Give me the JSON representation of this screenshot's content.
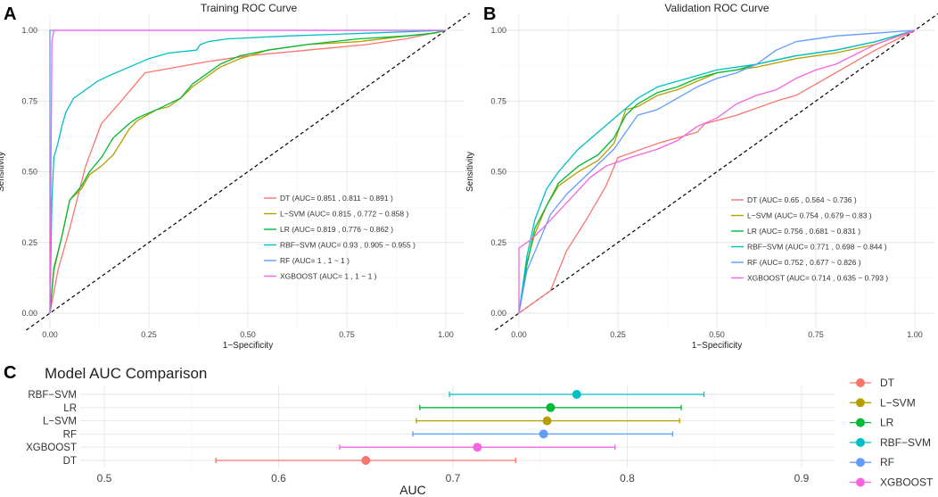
{
  "panel_letters": {
    "a": "A",
    "b": "B",
    "c": "C"
  },
  "colors": {
    "DT": "#F8766D",
    "L-SVM": "#B79F00",
    "LR": "#00BA38",
    "RBF-SVM": "#00BFC4",
    "RF": "#619CFF",
    "XGBOOST": "#F564E3"
  },
  "chart_data": [
    {
      "type": "line",
      "title": "Training ROC Curve",
      "xlabel": "1−Specificity",
      "ylabel": "Sensitivity",
      "xlim": [
        0,
        1
      ],
      "ylim": [
        0,
        1
      ],
      "x_ticks": [
        "0.00",
        "0.25",
        "0.50",
        "0.75",
        "1.00"
      ],
      "y_ticks": [
        "0.00",
        "0.25",
        "0.50",
        "0.75",
        "1.00"
      ],
      "reference_line": "diagonal",
      "legend": [
        "DT (AUC= 0.851 , 0.811 ~ 0.891 )",
        "L−SVM (AUC= 0.815 , 0.772 ~ 0.858 )",
        "LR (AUC= 0.819 , 0.776 ~ 0.862 )",
        "RBF−SVM (AUC= 0.93 , 0.905 ~ 0.955 )",
        "RF (AUC= 1 , 1 ~ 1 )",
        "XGBOOST (AUC= 1 , 1 ~ 1 )"
      ],
      "series": [
        {
          "name": "DT",
          "points": [
            [
              0,
              0
            ],
            [
              0.02,
              0.15
            ],
            [
              0.05,
              0.3
            ],
            [
              0.09,
              0.52
            ],
            [
              0.13,
              0.67
            ],
            [
              0.18,
              0.75
            ],
            [
              0.24,
              0.85
            ],
            [
              0.4,
              0.89
            ],
            [
              0.5,
              0.91
            ],
            [
              0.65,
              0.93
            ],
            [
              0.8,
              0.95
            ],
            [
              0.9,
              0.97
            ],
            [
              1,
              1
            ]
          ]
        },
        {
          "name": "L-SVM",
          "points": [
            [
              0,
              0
            ],
            [
              0.01,
              0.15
            ],
            [
              0.03,
              0.27
            ],
            [
              0.05,
              0.4
            ],
            [
              0.08,
              0.44
            ],
            [
              0.1,
              0.49
            ],
            [
              0.13,
              0.52
            ],
            [
              0.16,
              0.56
            ],
            [
              0.2,
              0.65
            ],
            [
              0.22,
              0.68
            ],
            [
              0.27,
              0.72
            ],
            [
              0.3,
              0.73
            ],
            [
              0.33,
              0.76
            ],
            [
              0.36,
              0.8
            ],
            [
              0.39,
              0.83
            ],
            [
              0.43,
              0.87
            ],
            [
              0.48,
              0.9
            ],
            [
              0.55,
              0.93
            ],
            [
              0.65,
              0.95
            ],
            [
              0.78,
              0.96
            ],
            [
              0.9,
              0.98
            ],
            [
              0.97,
              0.99
            ],
            [
              1,
              1
            ]
          ]
        },
        {
          "name": "LR",
          "points": [
            [
              0,
              0
            ],
            [
              0.01,
              0.16
            ],
            [
              0.03,
              0.27
            ],
            [
              0.05,
              0.4
            ],
            [
              0.08,
              0.45
            ],
            [
              0.1,
              0.5
            ],
            [
              0.13,
              0.55
            ],
            [
              0.16,
              0.62
            ],
            [
              0.2,
              0.67
            ],
            [
              0.22,
              0.69
            ],
            [
              0.27,
              0.72
            ],
            [
              0.3,
              0.74
            ],
            [
              0.33,
              0.76
            ],
            [
              0.36,
              0.81
            ],
            [
              0.39,
              0.84
            ],
            [
              0.43,
              0.88
            ],
            [
              0.48,
              0.91
            ],
            [
              0.55,
              0.93
            ],
            [
              0.65,
              0.95
            ],
            [
              0.78,
              0.97
            ],
            [
              0.9,
              0.98
            ],
            [
              0.97,
              0.99
            ],
            [
              1,
              1
            ]
          ]
        },
        {
          "name": "RBF-SVM",
          "points": [
            [
              0,
              0
            ],
            [
              0.005,
              0.4
            ],
            [
              0.01,
              0.55
            ],
            [
              0.02,
              0.6
            ],
            [
              0.03,
              0.66
            ],
            [
              0.04,
              0.71
            ],
            [
              0.06,
              0.76
            ],
            [
              0.09,
              0.79
            ],
            [
              0.12,
              0.82
            ],
            [
              0.15,
              0.84
            ],
            [
              0.2,
              0.87
            ],
            [
              0.25,
              0.9
            ],
            [
              0.3,
              0.92
            ],
            [
              0.37,
              0.93
            ],
            [
              0.38,
              0.95
            ],
            [
              0.4,
              0.96
            ],
            [
              0.45,
              0.97
            ],
            [
              0.6,
              0.98
            ],
            [
              0.8,
              0.99
            ],
            [
              1,
              1
            ]
          ]
        },
        {
          "name": "RF",
          "points": [
            [
              0,
              0
            ],
            [
              0,
              1
            ],
            [
              1,
              1
            ]
          ]
        },
        {
          "name": "XGBOOST",
          "points": [
            [
              0,
              0
            ],
            [
              0.005,
              0.96
            ],
            [
              0.01,
              1
            ],
            [
              1,
              1
            ]
          ]
        }
      ]
    },
    {
      "type": "line",
      "title": "Validation ROC Curve",
      "xlabel": "1−Specificity",
      "ylabel": "Sensitivity",
      "xlim": [
        0,
        1
      ],
      "ylim": [
        0,
        1
      ],
      "x_ticks": [
        "0.00",
        "0.25",
        "0.50",
        "0.75",
        "1.00"
      ],
      "y_ticks": [
        "0.00",
        "0.25",
        "0.50",
        "0.75",
        "1.00"
      ],
      "reference_line": "diagonal",
      "legend": [
        "DT (AUC= 0.65 , 0.564 ~ 0.736 )",
        "L−SVM (AUC= 0.754 , 0.679 ~ 0.83 )",
        "LR (AUC= 0.756 , 0.681 ~ 0.831 )",
        "RBF−SVM (AUC= 0.771 , 0.698 ~ 0.844 )",
        "RF (AUC= 0.752 , 0.677 ~ 0.826 )",
        "XGBOOST (AUC= 0.714 , 0.635 ~ 0.793 )"
      ],
      "series": [
        {
          "name": "DT",
          "points": [
            [
              0,
              0
            ],
            [
              0.08,
              0.08
            ],
            [
              0.12,
              0.22
            ],
            [
              0.17,
              0.33
            ],
            [
              0.22,
              0.45
            ],
            [
              0.25,
              0.55
            ],
            [
              0.35,
              0.6
            ],
            [
              0.45,
              0.64
            ],
            [
              0.47,
              0.67
            ],
            [
              0.55,
              0.7
            ],
            [
              0.65,
              0.75
            ],
            [
              0.7,
              0.77
            ],
            [
              0.8,
              0.85
            ],
            [
              0.9,
              0.93
            ],
            [
              1,
              1
            ]
          ]
        },
        {
          "name": "L-SVM",
          "points": [
            [
              0,
              0
            ],
            [
              0.02,
              0.18
            ],
            [
              0.04,
              0.28
            ],
            [
              0.07,
              0.38
            ],
            [
              0.1,
              0.45
            ],
            [
              0.15,
              0.5
            ],
            [
              0.2,
              0.54
            ],
            [
              0.24,
              0.6
            ],
            [
              0.27,
              0.72
            ],
            [
              0.3,
              0.73
            ],
            [
              0.35,
              0.77
            ],
            [
              0.4,
              0.79
            ],
            [
              0.45,
              0.82
            ],
            [
              0.5,
              0.85
            ],
            [
              0.55,
              0.86
            ],
            [
              0.6,
              0.87
            ],
            [
              0.7,
              0.9
            ],
            [
              0.8,
              0.92
            ],
            [
              0.9,
              0.95
            ],
            [
              1,
              1
            ]
          ]
        },
        {
          "name": "LR",
          "points": [
            [
              0,
              0
            ],
            [
              0.02,
              0.17
            ],
            [
              0.04,
              0.3
            ],
            [
              0.07,
              0.38
            ],
            [
              0.1,
              0.46
            ],
            [
              0.15,
              0.52
            ],
            [
              0.2,
              0.56
            ],
            [
              0.24,
              0.62
            ],
            [
              0.27,
              0.7
            ],
            [
              0.3,
              0.74
            ],
            [
              0.35,
              0.78
            ],
            [
              0.4,
              0.8
            ],
            [
              0.45,
              0.83
            ],
            [
              0.5,
              0.85
            ],
            [
              0.55,
              0.86
            ],
            [
              0.6,
              0.88
            ],
            [
              0.7,
              0.91
            ],
            [
              0.8,
              0.93
            ],
            [
              0.9,
              0.96
            ],
            [
              1,
              1
            ]
          ]
        },
        {
          "name": "RBF-SVM",
          "points": [
            [
              0,
              0
            ],
            [
              0.02,
              0.2
            ],
            [
              0.04,
              0.33
            ],
            [
              0.07,
              0.44
            ],
            [
              0.1,
              0.5
            ],
            [
              0.15,
              0.58
            ],
            [
              0.2,
              0.64
            ],
            [
              0.25,
              0.7
            ],
            [
              0.3,
              0.76
            ],
            [
              0.35,
              0.8
            ],
            [
              0.4,
              0.82
            ],
            [
              0.45,
              0.84
            ],
            [
              0.5,
              0.86
            ],
            [
              0.55,
              0.87
            ],
            [
              0.6,
              0.88
            ],
            [
              0.7,
              0.91
            ],
            [
              0.8,
              0.93
            ],
            [
              0.9,
              0.96
            ],
            [
              1,
              1
            ]
          ]
        },
        {
          "name": "RF",
          "points": [
            [
              0,
              0
            ],
            [
              0.02,
              0.15
            ],
            [
              0.05,
              0.25
            ],
            [
              0.08,
              0.35
            ],
            [
              0.12,
              0.42
            ],
            [
              0.18,
              0.5
            ],
            [
              0.24,
              0.58
            ],
            [
              0.28,
              0.66
            ],
            [
              0.3,
              0.7
            ],
            [
              0.35,
              0.72
            ],
            [
              0.4,
              0.76
            ],
            [
              0.45,
              0.8
            ],
            [
              0.5,
              0.83
            ],
            [
              0.55,
              0.85
            ],
            [
              0.6,
              0.88
            ],
            [
              0.65,
              0.93
            ],
            [
              0.7,
              0.96
            ],
            [
              0.8,
              0.98
            ],
            [
              0.9,
              0.99
            ],
            [
              1,
              1
            ]
          ]
        },
        {
          "name": "XGBOOST",
          "points": [
            [
              0,
              0
            ],
            [
              0,
              0.23
            ],
            [
              0.03,
              0.26
            ],
            [
              0.06,
              0.3
            ],
            [
              0.1,
              0.36
            ],
            [
              0.14,
              0.42
            ],
            [
              0.18,
              0.48
            ],
            [
              0.22,
              0.52
            ],
            [
              0.28,
              0.55
            ],
            [
              0.35,
              0.58
            ],
            [
              0.4,
              0.61
            ],
            [
              0.45,
              0.66
            ],
            [
              0.5,
              0.69
            ],
            [
              0.55,
              0.74
            ],
            [
              0.6,
              0.77
            ],
            [
              0.65,
              0.79
            ],
            [
              0.7,
              0.83
            ],
            [
              0.75,
              0.86
            ],
            [
              0.8,
              0.88
            ],
            [
              0.9,
              0.95
            ],
            [
              1,
              1
            ]
          ]
        }
      ]
    },
    {
      "type": "scatter",
      "title": "Model AUC Comparison",
      "xlabel": "AUC",
      "ylabel": "",
      "xlim": [
        0.475,
        0.925
      ],
      "x_ticks": [
        "0.5",
        "0.6",
        "0.7",
        "0.8",
        "0.9"
      ],
      "legend_placement": "right",
      "legend": [
        "DT",
        "L−SVM",
        "LR",
        "RBF−SVM",
        "RF",
        "XGBOOST"
      ],
      "rows": [
        {
          "label": "RBF−SVM",
          "key": "RBF-SVM",
          "auc": 0.771,
          "lower": 0.698,
          "upper": 0.844
        },
        {
          "label": "LR",
          "key": "LR",
          "auc": 0.756,
          "lower": 0.681,
          "upper": 0.831
        },
        {
          "label": "L−SVM",
          "key": "L-SVM",
          "auc": 0.754,
          "lower": 0.679,
          "upper": 0.83
        },
        {
          "label": "RF",
          "key": "RF",
          "auc": 0.752,
          "lower": 0.677,
          "upper": 0.826
        },
        {
          "label": "XGBOOST",
          "key": "XGBOOST",
          "auc": 0.714,
          "lower": 0.635,
          "upper": 0.793
        },
        {
          "label": "DT",
          "key": "DT",
          "auc": 0.65,
          "lower": 0.564,
          "upper": 0.736
        }
      ]
    }
  ]
}
